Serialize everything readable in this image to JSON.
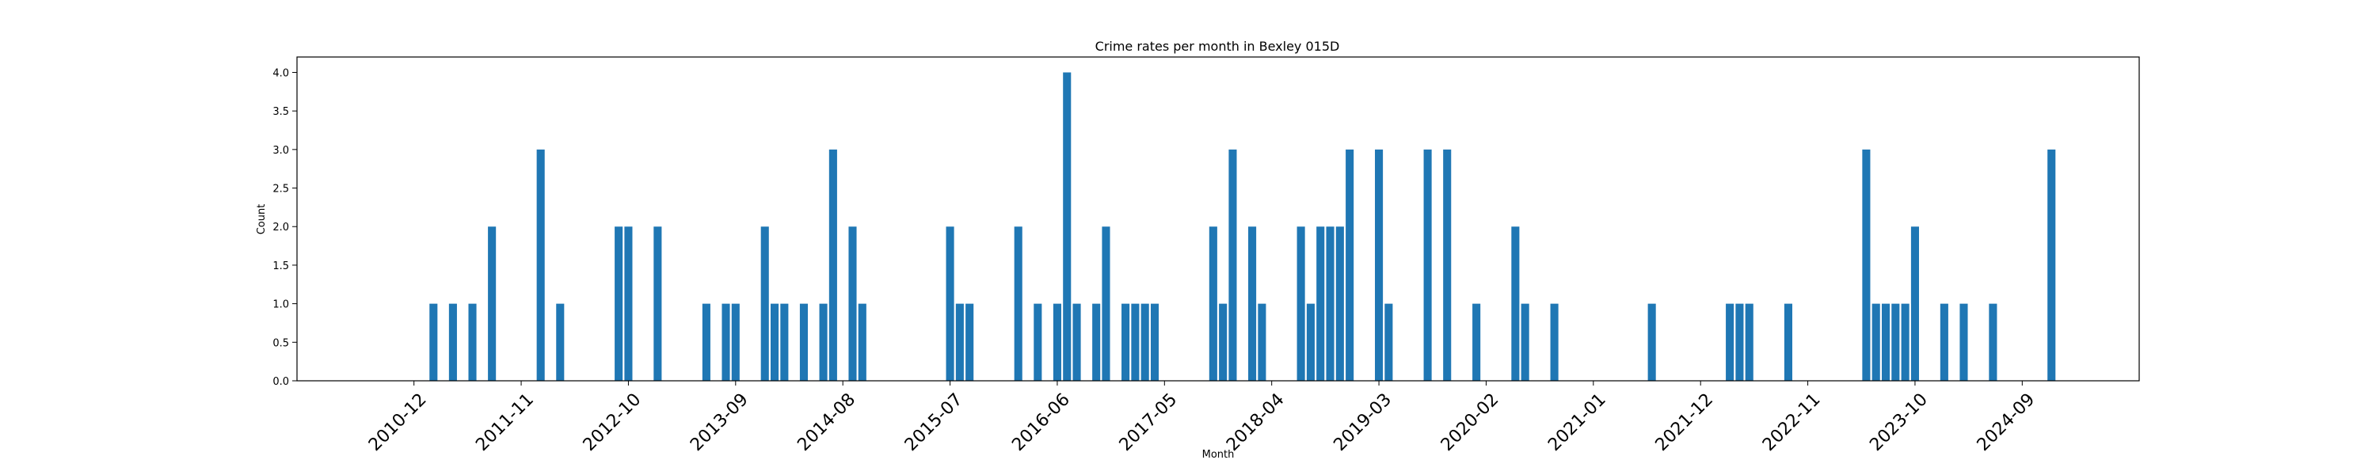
{
  "chart_data": {
    "type": "bar",
    "title": "Crime rates per month in Bexley 015D",
    "xlabel": "Month",
    "ylabel": "Count",
    "ylim": [
      0,
      4.2
    ],
    "xlim": [
      "2009-12",
      "2025-09"
    ],
    "yticks": [
      "0.0",
      "0.5",
      "1.0",
      "1.5",
      "2.0",
      "2.5",
      "3.0",
      "3.5",
      "4.0"
    ],
    "xticks": [
      "2010-12",
      "2011-11",
      "2012-10",
      "2013-09",
      "2014-08",
      "2015-07",
      "2016-06",
      "2017-05",
      "2018-04",
      "2019-03",
      "2020-02",
      "2021-01",
      "2021-12",
      "2022-11",
      "2023-10",
      "2024-09"
    ],
    "bar_color": "#1f77b4",
    "grid": false,
    "months": [
      "2011-02",
      "2011-04",
      "2011-06",
      "2011-08",
      "2012-01",
      "2012-03",
      "2012-09",
      "2012-10",
      "2013-01",
      "2013-06",
      "2013-08",
      "2013-09",
      "2013-12",
      "2014-01",
      "2014-02",
      "2014-04",
      "2014-06",
      "2014-07",
      "2014-09",
      "2014-10",
      "2015-07",
      "2015-08",
      "2015-09",
      "2016-02",
      "2016-04",
      "2016-06",
      "2016-07",
      "2016-08",
      "2016-10",
      "2016-11",
      "2017-01",
      "2017-02",
      "2017-03",
      "2017-04",
      "2017-10",
      "2017-11",
      "2017-12",
      "2018-02",
      "2018-03",
      "2018-07",
      "2018-08",
      "2018-09",
      "2018-10",
      "2018-11",
      "2018-12",
      "2019-03",
      "2019-04",
      "2019-08",
      "2019-10",
      "2020-01",
      "2020-05",
      "2020-06",
      "2020-09",
      "2021-07",
      "2022-03",
      "2022-04",
      "2022-05",
      "2022-09",
      "2023-05",
      "2023-06",
      "2023-07",
      "2023-08",
      "2023-09",
      "2023-10",
      "2024-01",
      "2024-03",
      "2024-06",
      "2024-12"
    ],
    "values": [
      1,
      1,
      1,
      2,
      3,
      1,
      2,
      2,
      2,
      1,
      1,
      1,
      2,
      1,
      1,
      1,
      1,
      3,
      2,
      1,
      2,
      1,
      1,
      2,
      1,
      1,
      4,
      1,
      1,
      2,
      1,
      1,
      1,
      1,
      2,
      1,
      3,
      2,
      1,
      2,
      1,
      2,
      2,
      2,
      3,
      3,
      1,
      3,
      3,
      1,
      2,
      1,
      1,
      1,
      1,
      1,
      1,
      1,
      3,
      1,
      1,
      1,
      1,
      2,
      1,
      1,
      1,
      3
    ]
  }
}
